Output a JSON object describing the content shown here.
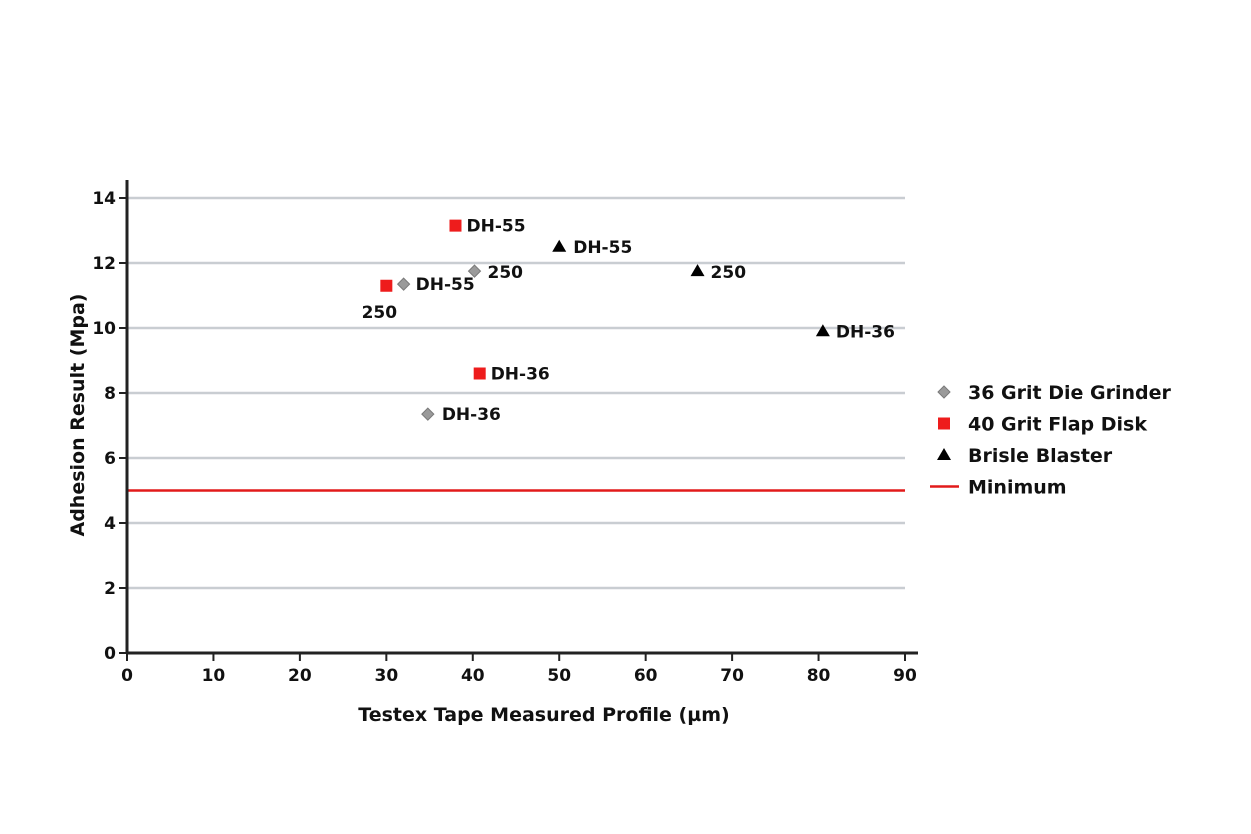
{
  "chart_data": {
    "type": "scatter",
    "title": "",
    "xlabel": "Testex Tape Measured Profile (µm)",
    "ylabel": "Adhesion Result (Mpa)",
    "xlim": [
      0,
      90
    ],
    "ylim": [
      0,
      14
    ],
    "x_ticks": [
      "0",
      "10",
      "20",
      "30",
      "40",
      "50",
      "60",
      "70",
      "80",
      "90"
    ],
    "y_ticks": [
      "0",
      "2",
      "4",
      "6",
      "8",
      "10",
      "12",
      "14"
    ],
    "grid": "horizontal",
    "legend_position": "right",
    "series": [
      {
        "name": "36 Grit Die Grinder",
        "marker": "diamond",
        "color": "#9a9a9a",
        "points": [
          {
            "x": 32,
            "y": 11.35,
            "label": "DH-55"
          },
          {
            "x": 40.2,
            "y": 11.75,
            "label": "250"
          },
          {
            "x": 34.8,
            "y": 7.35,
            "label": "DH-36"
          }
        ]
      },
      {
        "name": "40 Grit Flap Disk",
        "marker": "square",
        "color": "#ee1c1c",
        "points": [
          {
            "x": 38,
            "y": 13.15,
            "label": "DH-55"
          },
          {
            "x": 30,
            "y": 11.3,
            "label": "250"
          },
          {
            "x": 40.8,
            "y": 8.6,
            "label": "DH-36"
          }
        ]
      },
      {
        "name": "Brisle Blaster",
        "marker": "triangle",
        "color": "#000000",
        "points": [
          {
            "x": 50,
            "y": 12.5,
            "label": "DH-55"
          },
          {
            "x": 66,
            "y": 11.75,
            "label": "250"
          },
          {
            "x": 80.5,
            "y": 9.9,
            "label": "DH-36"
          }
        ]
      }
    ],
    "reference_lines": [
      {
        "name": "Minimum",
        "y": 5,
        "color": "#e21a1a"
      }
    ]
  }
}
